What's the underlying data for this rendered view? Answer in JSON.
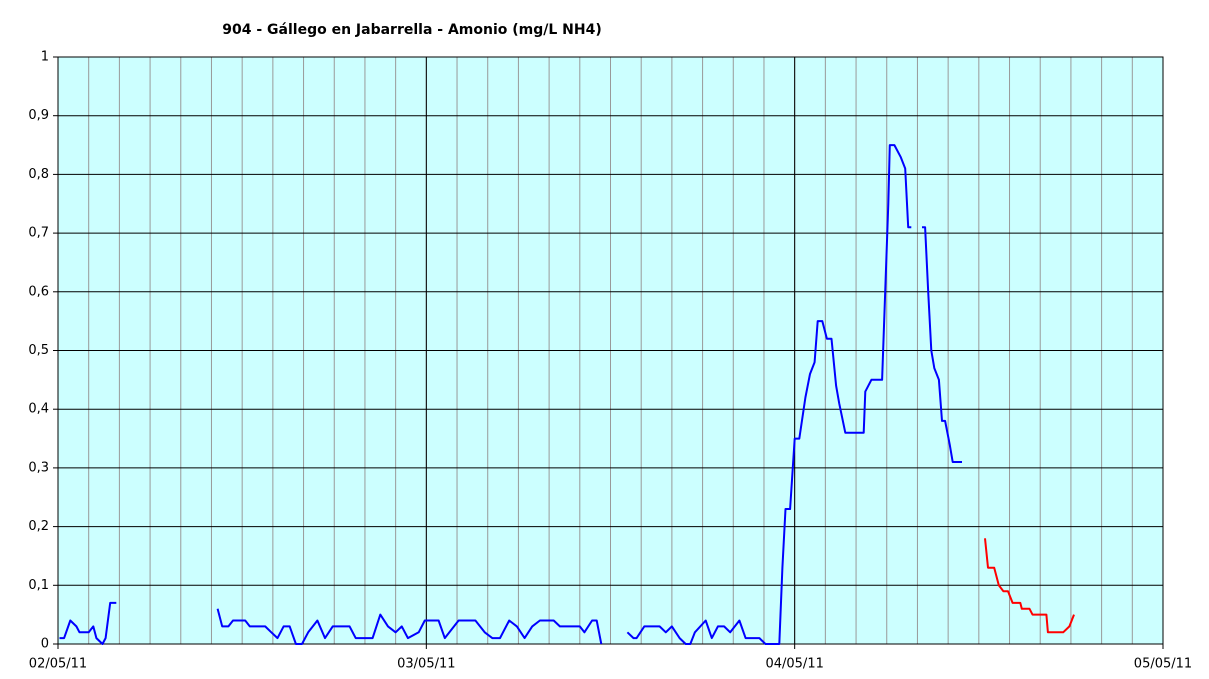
{
  "chart_data": {
    "type": "line",
    "title": "904 - Gállego en Jabarrella - Amonio (mg/L NH4)",
    "xlim": [
      0,
      72
    ],
    "xticks": [
      {
        "value": 0,
        "label": "02/05/11"
      },
      {
        "value": 24,
        "label": "03/05/11"
      },
      {
        "value": 48,
        "label": "04/05/11"
      },
      {
        "value": 72,
        "label": "05/05/11"
      }
    ],
    "xminorticks": [
      0,
      2,
      4,
      6,
      8,
      10,
      12,
      14,
      16,
      18,
      20,
      22,
      24,
      26,
      28,
      30,
      32,
      34,
      36,
      38,
      40,
      42,
      44,
      46,
      48,
      50,
      52,
      54,
      56,
      58,
      60,
      62,
      64,
      66,
      68,
      70,
      72
    ],
    "ylim": [
      0,
      1
    ],
    "yticks": [
      0,
      {
        "value": 0.1,
        "label": "0,1"
      },
      {
        "value": 0.2,
        "label": "0,2"
      },
      {
        "value": 0.3,
        "label": "0,3"
      },
      {
        "value": 0.4,
        "label": "0,4"
      },
      {
        "value": 0.5,
        "label": "0,5"
      },
      {
        "value": 0.6,
        "label": "0,6"
      },
      {
        "value": 0.7,
        "label": "0,7"
      },
      {
        "value": 0.8,
        "label": "0,8"
      },
      {
        "value": 0.9,
        "label": "0,9"
      },
      1
    ],
    "grid": true,
    "background": "#ccffff",
    "series": [
      {
        "color": "#0000ff",
        "x": [
          0.1,
          0.4,
          0.8,
          1.2,
          1.4,
          2.0,
          2.3,
          2.5,
          2.9,
          3.1,
          3.4,
          3.8,
          7,
          10.4,
          10.7,
          11.1,
          11.4,
          12.2,
          12.5,
          13.5,
          13.9,
          14.3,
          14.7,
          15.1,
          15.5,
          15.9,
          16.3,
          16.9,
          17.4,
          17.9,
          19.0,
          19.4,
          20.5,
          21.0,
          21.5,
          22.0,
          22.4,
          22.8,
          23.5,
          23.9,
          24.8,
          25.2,
          26.1,
          27.2,
          27.8,
          28.3,
          28.8,
          29.4,
          29.9,
          30.4,
          30.9,
          31.4,
          32.3,
          32.7,
          34.0,
          34.3,
          34.8,
          35.1,
          35.4,
          36,
          37.1,
          37.5,
          37.7,
          38.2,
          39.2,
          39.6,
          40.0,
          40.5,
          40.9,
          41.2,
          41.5,
          42.2,
          42.6,
          43.0,
          43.4,
          43.8,
          44.4,
          44.8,
          45.7,
          46.1,
          47.0,
          47.2,
          47.4,
          47.7,
          48.0,
          48.3,
          48.7,
          49.0,
          49.3,
          49.5,
          49.8,
          50.1,
          50.4,
          50.7,
          50.9,
          51.3,
          52.5,
          52.6,
          53.0,
          53.7,
          53.9,
          54.1,
          54.2,
          54.5,
          54.9,
          55.2,
          55.4,
          55.6,
          55.9,
          56.3,
          56.5,
          56.7,
          56.9,
          57.1,
          57.4,
          57.6,
          57.8,
          58.1,
          58.3,
          58.9
        ],
        "values": [
          0.01,
          0.01,
          0.04,
          0.03,
          0.02,
          0.02,
          0.03,
          0.01,
          0.0,
          0.01,
          0.07,
          0.07,
          null,
          0.06,
          0.03,
          0.03,
          0.04,
          0.04,
          0.03,
          0.03,
          0.02,
          0.01,
          0.03,
          0.03,
          0.0,
          0.0,
          0.02,
          0.04,
          0.01,
          0.03,
          0.03,
          0.01,
          0.01,
          0.05,
          0.03,
          0.02,
          0.03,
          0.01,
          0.02,
          0.04,
          0.04,
          0.01,
          0.04,
          0.04,
          0.02,
          0.01,
          0.01,
          0.04,
          0.03,
          0.01,
          0.03,
          0.04,
          0.04,
          0.03,
          0.03,
          0.02,
          0.04,
          0.04,
          0.0,
          null,
          0.02,
          0.01,
          0.01,
          0.03,
          0.03,
          0.02,
          0.03,
          0.01,
          0.0,
          0.0,
          0.02,
          0.04,
          0.01,
          0.03,
          0.03,
          0.02,
          0.04,
          0.01,
          0.01,
          0.0,
          0.0,
          0.13,
          0.23,
          0.23,
          0.35,
          0.35,
          0.42,
          0.46,
          0.48,
          0.55,
          0.55,
          0.52,
          0.52,
          0.44,
          0.41,
          0.36,
          0.36,
          0.43,
          0.45,
          0.45,
          0.6,
          0.75,
          0.85,
          0.85,
          0.83,
          0.81,
          0.71,
          0.71,
          null,
          0.71,
          0.71,
          0.6,
          0.5,
          0.47,
          0.45,
          0.38,
          0.38,
          0.34,
          0.31,
          0.31
        ]
      },
      {
        "color": "#ff0000",
        "x": [
          60.4,
          60.6,
          61.0,
          61.3,
          61.6,
          61.9,
          62.2,
          62.7,
          62.8,
          63.3,
          63.5,
          64.4,
          64.5,
          65.5,
          65.9,
          66.2
        ],
        "values": [
          0.18,
          0.13,
          0.13,
          0.1,
          0.09,
          0.09,
          0.07,
          0.07,
          0.06,
          0.06,
          0.05,
          0.05,
          0.02,
          0.02,
          0.03,
          0.05
        ]
      }
    ]
  }
}
